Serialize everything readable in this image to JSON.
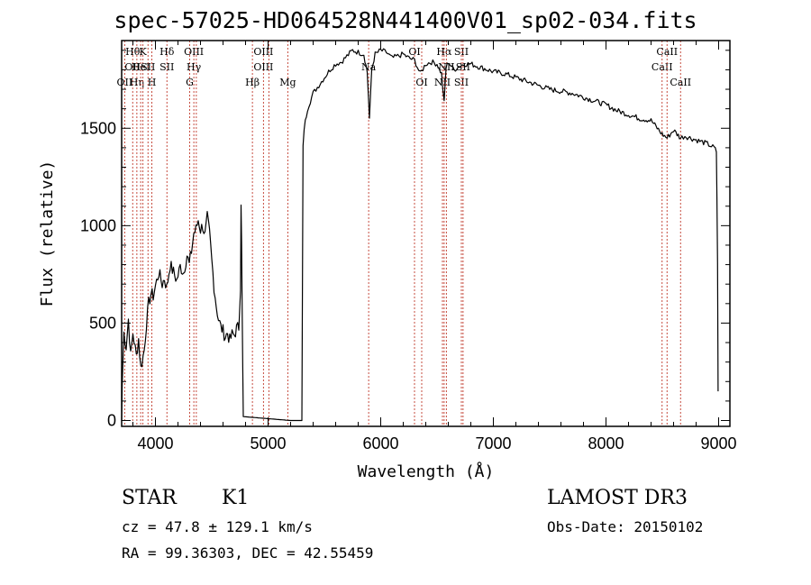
{
  "title": "spec-57025-HD064528N441400V01_sp02-034.fits",
  "info": {
    "class": "STAR",
    "subclass": "K1",
    "survey": "LAMOST DR3",
    "cz": "cz = 47.8 ± 129.1 km/s",
    "obs_date": "Obs-Date: 20150102",
    "radec": "RA =  99.36303, DEC =  42.55459"
  },
  "chart_data": {
    "type": "line",
    "xlabel": "Wavelength (Å)",
    "ylabel": "Flux (relative)",
    "xlim": [
      3700,
      9100
    ],
    "ylim": [
      -30,
      1950
    ],
    "xticks": [
      4000,
      5000,
      6000,
      7000,
      8000,
      9000
    ],
    "yticks": [
      0,
      500,
      1000,
      1500
    ],
    "grid": false,
    "series": [
      {
        "color": "#000000",
        "x": [
          3700,
          3705,
          3720,
          3740,
          3760,
          3780,
          3800,
          3830,
          3850,
          3870,
          3900,
          3920,
          3940,
          3960,
          3980,
          4000,
          4030,
          4060,
          4080,
          4100,
          4130,
          4160,
          4190,
          4220,
          4250,
          4280,
          4300,
          4320,
          4340,
          4360,
          4380,
          4400,
          4420,
          4440,
          4460,
          4480,
          4500,
          4520,
          4540,
          4560,
          4580,
          4600,
          4620,
          4640,
          4660,
          4680,
          4700,
          4720,
          4740,
          4755,
          4760,
          4765,
          4770,
          4775,
          4780,
          5200,
          5260,
          5290,
          5300,
          5310,
          5320,
          5350,
          5400,
          5450,
          5500,
          5550,
          5600,
          5650,
          5700,
          5750,
          5800,
          5850,
          5880,
          5900,
          5920,
          5950,
          6000,
          6050,
          6100,
          6150,
          6200,
          6250,
          6300,
          6350,
          6400,
          6450,
          6500,
          6540,
          6563,
          6580,
          6600,
          6650,
          6700,
          6750,
          6800,
          6900,
          7000,
          7100,
          7200,
          7300,
          7400,
          7500,
          7600,
          7700,
          7800,
          7900,
          8000,
          8100,
          8200,
          8300,
          8400,
          8498,
          8542,
          8600,
          8662,
          8700,
          8800,
          8900,
          8960,
          8980,
          8985,
          8990,
          8995
        ],
        "y": [
          0,
          180,
          450,
          380,
          520,
          330,
          450,
          330,
          420,
          270,
          360,
          500,
          600,
          650,
          640,
          690,
          760,
          700,
          730,
          680,
          800,
          760,
          720,
          790,
          760,
          850,
          800,
          870,
          960,
          980,
          1030,
          980,
          1000,
          950,
          1040,
          960,
          820,
          690,
          590,
          520,
          480,
          460,
          430,
          450,
          410,
          440,
          440,
          470,
          480,
          700,
          1130,
          900,
          530,
          260,
          20,
          0,
          0,
          0,
          0,
          1400,
          1500,
          1600,
          1680,
          1720,
          1760,
          1800,
          1830,
          1840,
          1870,
          1900,
          1890,
          1880,
          1790,
          1550,
          1800,
          1880,
          1900,
          1890,
          1860,
          1870,
          1880,
          1860,
          1850,
          1780,
          1830,
          1840,
          1830,
          1780,
          1630,
          1810,
          1840,
          1800,
          1820,
          1830,
          1830,
          1810,
          1790,
          1780,
          1760,
          1740,
          1720,
          1700,
          1690,
          1680,
          1660,
          1640,
          1620,
          1590,
          1570,
          1550,
          1540,
          1470,
          1450,
          1490,
          1450,
          1460,
          1440,
          1420,
          1400,
          1380,
          1150,
          800,
          150
        ]
      }
    ],
    "lines": [
      {
        "wave": 3727,
        "labels": [
          "OII"
        ],
        "row": [
          3
        ]
      },
      {
        "wave": 3798,
        "labels": [
          "Hθ",
          "OII"
        ],
        "row": [
          1,
          2
        ]
      },
      {
        "wave": 3835,
        "labels": [
          "Hη"
        ],
        "row": [
          3
        ]
      },
      {
        "wave": 3869,
        "labels": [
          "HeI"
        ],
        "row": [
          2
        ]
      },
      {
        "wave": 3889,
        "labels": [
          "K"
        ],
        "row": [
          1
        ]
      },
      {
        "wave": 3934,
        "labels": [
          "SII"
        ],
        "row": [
          2
        ]
      },
      {
        "wave": 3968,
        "labels": [
          "H"
        ],
        "row": [
          3
        ]
      },
      {
        "wave": 4102,
        "labels": [
          "Hδ",
          "SII"
        ],
        "row": [
          1,
          2
        ]
      },
      {
        "wave": 4304,
        "labels": [
          "G"
        ],
        "row": [
          3
        ]
      },
      {
        "wave": 4341,
        "labels": [
          "OIII",
          "Hγ"
        ],
        "row": [
          1,
          2
        ]
      },
      {
        "wave": 4363,
        "labels": [],
        "row": []
      },
      {
        "wave": 4861,
        "labels": [
          "Hβ"
        ],
        "row": [
          3
        ]
      },
      {
        "wave": 4959,
        "labels": [
          "OIII",
          "OIII"
        ],
        "row": [
          1,
          2
        ]
      },
      {
        "wave": 5007,
        "labels": [],
        "row": []
      },
      {
        "wave": 5175,
        "labels": [
          "Mg"
        ],
        "row": [
          3
        ]
      },
      {
        "wave": 5893,
        "labels": [
          "Na"
        ],
        "row": [
          2
        ]
      },
      {
        "wave": 6300,
        "labels": [
          "OI"
        ],
        "row": [
          1
        ]
      },
      {
        "wave": 6364,
        "labels": [
          "OI"
        ],
        "row": [
          3
        ]
      },
      {
        "wave": 6548,
        "labels": [
          "NII"
        ],
        "row": [
          3
        ]
      },
      {
        "wave": 6563,
        "labels": [
          "Hα"
        ],
        "row": [
          1
        ]
      },
      {
        "wave": 6583,
        "labels": [
          "NII"
        ],
        "row": [
          2
        ]
      },
      {
        "wave": 6716,
        "labels": [
          "SII",
          "SII"
        ],
        "row": [
          1,
          3
        ]
      },
      {
        "wave": 6731,
        "labels": [
          "SII"
        ],
        "row": [
          2
        ]
      },
      {
        "wave": 8498,
        "labels": [
          "CaII"
        ],
        "row": [
          2
        ]
      },
      {
        "wave": 8542,
        "labels": [
          "CaII"
        ],
        "row": [
          1
        ]
      },
      {
        "wave": 8662,
        "labels": [
          "CaII"
        ],
        "row": [
          3
        ]
      }
    ]
  }
}
